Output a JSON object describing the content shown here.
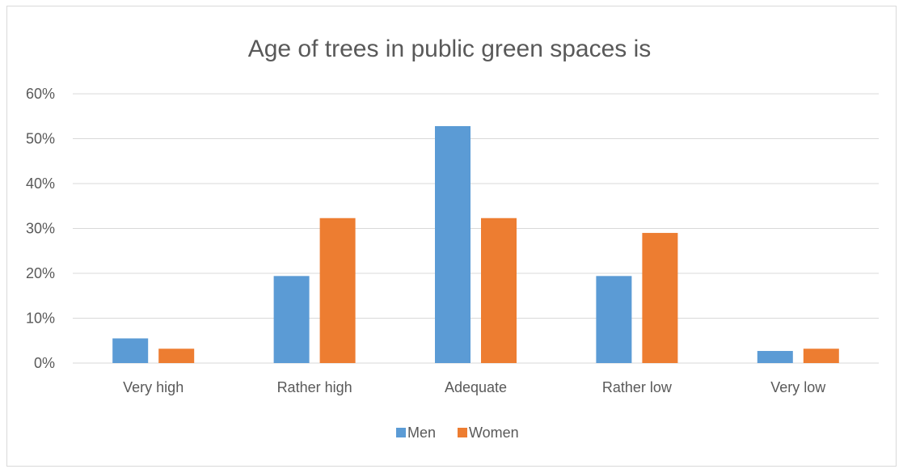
{
  "chart_data": {
    "type": "bar",
    "title": "Age of trees in public green spaces is",
    "xlabel": "",
    "ylabel": "",
    "categories": [
      "Very high",
      "Rather high",
      "Adequate",
      "Rather low",
      "Very low"
    ],
    "series": [
      {
        "name": "Men",
        "values": [
          5.5,
          19.4,
          52.8,
          19.4,
          2.7
        ]
      },
      {
        "name": "Women",
        "values": [
          3.2,
          32.3,
          32.3,
          29.0,
          3.2
        ]
      }
    ],
    "ylim": [
      0,
      60
    ],
    "yticks": [
      0,
      10,
      20,
      30,
      40,
      50,
      60
    ],
    "ytick_labels": [
      "0%",
      "10%",
      "20%",
      "30%",
      "40%",
      "50%",
      "60%"
    ],
    "grid": true,
    "legend_position": "bottom",
    "colors": {
      "Men": "#5b9bd5",
      "Women": "#ed7d31",
      "grid": "#d9d9d9",
      "text": "#595959"
    }
  }
}
